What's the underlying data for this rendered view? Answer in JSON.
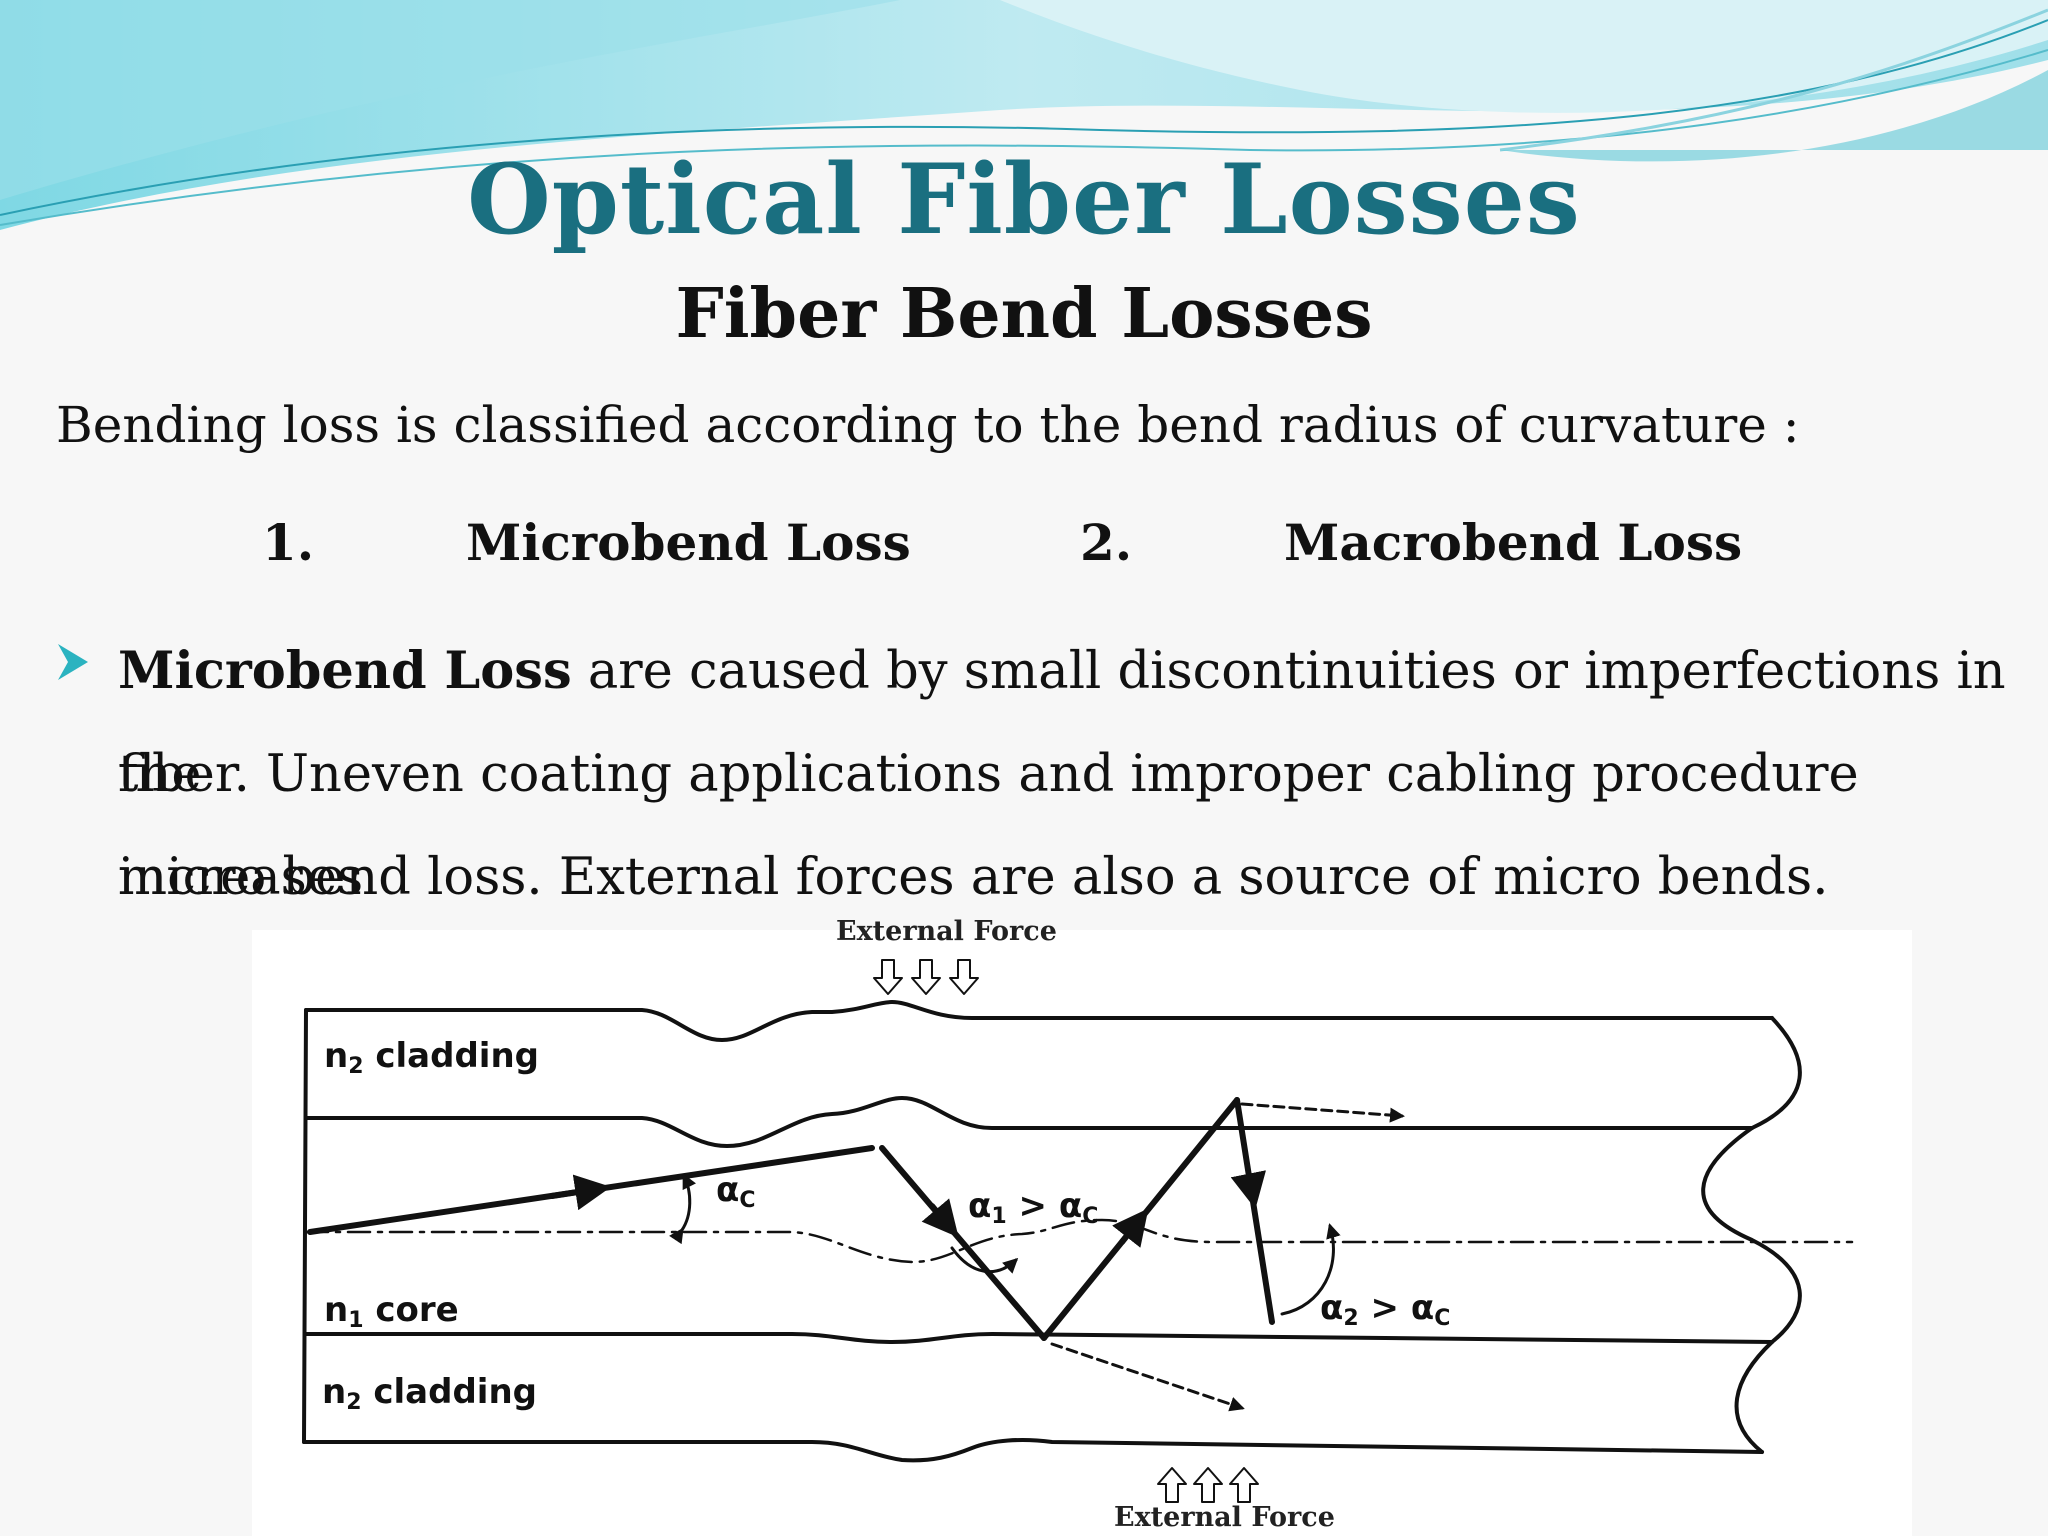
{
  "slide": {
    "title": "Optical Fiber Losses",
    "subtitle": "Fiber Bend Losses",
    "intro": "Bending loss is classified according to the bend radius of curvature :",
    "list": [
      {
        "number": "1.",
        "label": "Microbend Loss"
      },
      {
        "number": "2.",
        "label": "Macrobend Loss"
      }
    ],
    "bullet": {
      "bold_lead": "Microbend Loss",
      "line1_rest": " are caused by small discontinuities or imperfections in the",
      "line2": "fiber. Uneven coating applications and improper cabling procedure increases",
      "line3": "micro bend loss. External forces are also a source of micro bends."
    },
    "colors": {
      "title": "#1a6f80",
      "bullet_arrow": "#2bb3c0",
      "wave_light": "#bfe9ef",
      "wave_mid": "#6fd0dc"
    }
  },
  "diagram": {
    "force_top": "External Force",
    "force_bottom": "External Force",
    "cladding_top": {
      "n": "n",
      "sub": "2",
      "text": " cladding"
    },
    "core": {
      "n": "n",
      "sub": "1",
      "text": " core"
    },
    "cladding_bottom": {
      "n": "n",
      "sub": "2",
      "text": " cladding"
    },
    "angle_c": {
      "a": "α",
      "sub": "C"
    },
    "angle_1": {
      "a": "α",
      "sub": "1",
      "gt": " > ",
      "b": "α",
      "bsub": "C"
    },
    "angle_2": {
      "a": "α",
      "sub": "2",
      "gt": " > ",
      "b": "α",
      "bsub": "C"
    }
  }
}
